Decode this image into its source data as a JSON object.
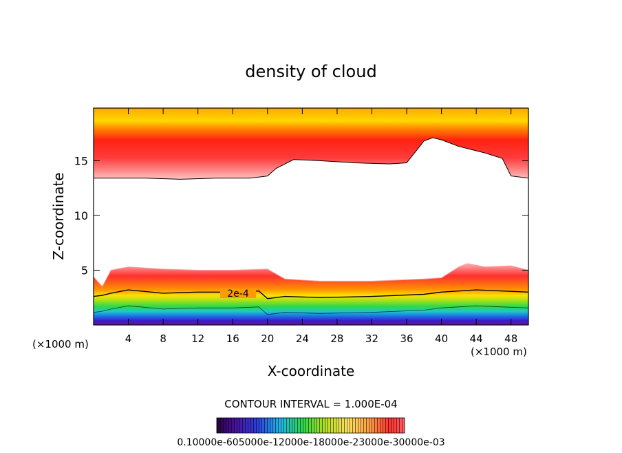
{
  "chart_data": {
    "type": "contour",
    "title": "density of cloud",
    "xlabel": "X-coordinate",
    "ylabel": "Z-coordinate",
    "x_unit": "(×1000 m)",
    "x_unit_right": "(×1000 m)",
    "xlim": [
      0,
      50
    ],
    "ylim": [
      0,
      19.8
    ],
    "x_ticks": [
      4,
      8,
      12,
      16,
      20,
      24,
      28,
      32,
      36,
      40,
      44,
      48
    ],
    "y_ticks": [
      5,
      10,
      15
    ],
    "x_tick_labels": [
      "4",
      "8",
      "12",
      "16",
      "20",
      "24",
      "28",
      "32",
      "36",
      "40",
      "44",
      "48"
    ],
    "y_tick_labels": [
      "5",
      "10",
      "15"
    ],
    "contour_interval_text": "CONTOUR INTERVAL = 1.000E-04",
    "contour_label": "2e-4",
    "colorbar_labels_text": "0.10000e-605000e-12000e-18000e-23000e-30000e-03",
    "colorbar_levels": [
      0.0001,
      0.0002,
      0.0003
    ],
    "color_scale": [
      "#5a0a96",
      "#2a28d8",
      "#1e9ce8",
      "#2cd84a",
      "#a8e21a",
      "#ffe000",
      "#ff9a00",
      "#ff2a10",
      "#ffa8a8"
    ],
    "grid": false,
    "upper_layer_bottom": {
      "x": [
        0,
        2,
        6,
        10,
        14,
        18,
        20,
        21,
        23,
        26,
        30,
        34,
        36,
        37,
        38,
        39,
        40,
        42,
        44,
        45,
        47,
        48,
        50
      ],
      "z": [
        13.4,
        13.4,
        13.4,
        13.3,
        13.4,
        13.4,
        13.6,
        14.3,
        15.1,
        15.0,
        14.8,
        14.7,
        14.8,
        15.8,
        16.8,
        17.1,
        16.9,
        16.3,
        15.9,
        15.7,
        15.2,
        13.6,
        13.4
      ]
    },
    "lower_layer_top": {
      "x": [
        0,
        1,
        2,
        4,
        8,
        12,
        16,
        20,
        22,
        26,
        32,
        38,
        40,
        42,
        43,
        45,
        48,
        50
      ],
      "z": [
        4.4,
        3.5,
        5.0,
        5.3,
        5.1,
        5.0,
        5.0,
        5.1,
        4.2,
        4.0,
        4.0,
        4.2,
        4.3,
        5.3,
        5.6,
        5.3,
        5.4,
        5.0
      ]
    },
    "contour_2e4": {
      "x": [
        0,
        1,
        2,
        4,
        8,
        12,
        16,
        19,
        20,
        22,
        26,
        32,
        38,
        40,
        44,
        47,
        50
      ],
      "z": [
        2.6,
        2.7,
        2.9,
        3.2,
        2.9,
        3.0,
        3.0,
        3.1,
        2.4,
        2.6,
        2.5,
        2.6,
        2.8,
        3.0,
        3.2,
        3.1,
        3.0
      ]
    }
  }
}
